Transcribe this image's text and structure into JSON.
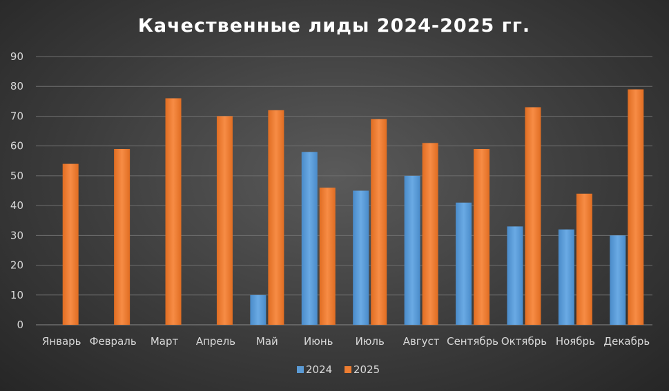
{
  "chart_data": {
    "type": "bar",
    "title": "Качественные лиды 2024-2025 гг.",
    "categories": [
      "Январь",
      "Февраль",
      "Март",
      "Апрель",
      "Май",
      "Июнь",
      "Июль",
      "Август",
      "Сентябрь",
      "Октябрь",
      "Ноябрь",
      "Декабрь"
    ],
    "series": [
      {
        "name": "2024",
        "color": "#5b9bd5",
        "values": [
          null,
          null,
          null,
          null,
          10,
          58,
          45,
          50,
          41,
          33,
          32,
          30
        ]
      },
      {
        "name": "2025",
        "color": "#ed7d31",
        "values": [
          54,
          59,
          76,
          70,
          72,
          46,
          69,
          61,
          59,
          73,
          44,
          79
        ]
      }
    ],
    "ylim": [
      0,
      90
    ],
    "yticks": [
      "0",
      "10",
      "20",
      "30",
      "40",
      "50",
      "60",
      "70",
      "80",
      "90"
    ],
    "grid": true,
    "legend": "bottom",
    "xlabel": "",
    "ylabel": ""
  }
}
